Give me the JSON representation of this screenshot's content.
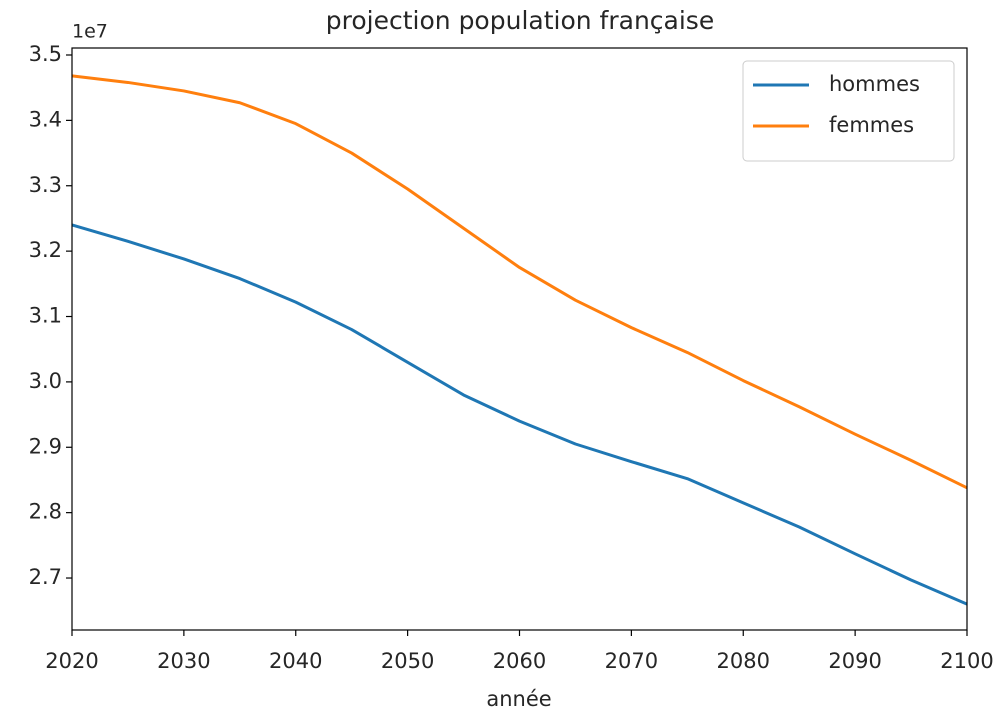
{
  "chart_data": {
    "type": "line",
    "title": "projection population française",
    "xlabel": "année",
    "offset_text": "1e7",
    "x": [
      2020,
      2025,
      2030,
      2035,
      2040,
      2045,
      2050,
      2055,
      2060,
      2065,
      2070,
      2075,
      2080,
      2085,
      2090,
      2095,
      2100
    ],
    "series": [
      {
        "name": "hommes",
        "color": "#1f77b4",
        "values": [
          3.24,
          3.215,
          3.188,
          3.158,
          3.122,
          3.08,
          3.03,
          2.98,
          2.94,
          2.905,
          2.878,
          2.852,
          2.815,
          2.778,
          2.737,
          2.697,
          2.66
        ]
      },
      {
        "name": "femmes",
        "color": "#ff7f0e",
        "values": [
          3.468,
          3.458,
          3.445,
          3.427,
          3.395,
          3.35,
          3.295,
          3.235,
          3.175,
          3.125,
          3.083,
          3.045,
          3.002,
          2.962,
          2.92,
          2.88,
          2.838
        ]
      }
    ],
    "xlim": [
      2020,
      2100
    ],
    "xticks": [
      2020,
      2030,
      2040,
      2050,
      2060,
      2070,
      2080,
      2090,
      2100
    ],
    "ylim": [
      2.6205,
      3.5107
    ],
    "yticks": [
      {
        "value": 2.7,
        "label": "2.7"
      },
      {
        "value": 2.8,
        "label": "2.8"
      },
      {
        "value": 2.9,
        "label": "2.9"
      },
      {
        "value": 3.0,
        "label": "3.0"
      },
      {
        "value": 3.1,
        "label": "3.1"
      },
      {
        "value": 3.2,
        "label": "3.2"
      },
      {
        "value": 3.3,
        "label": "3.3"
      },
      {
        "value": 3.4,
        "label": "3.4"
      },
      {
        "value": 3.5,
        "label": "3.5"
      }
    ],
    "legend": "upper right",
    "grid": false
  }
}
